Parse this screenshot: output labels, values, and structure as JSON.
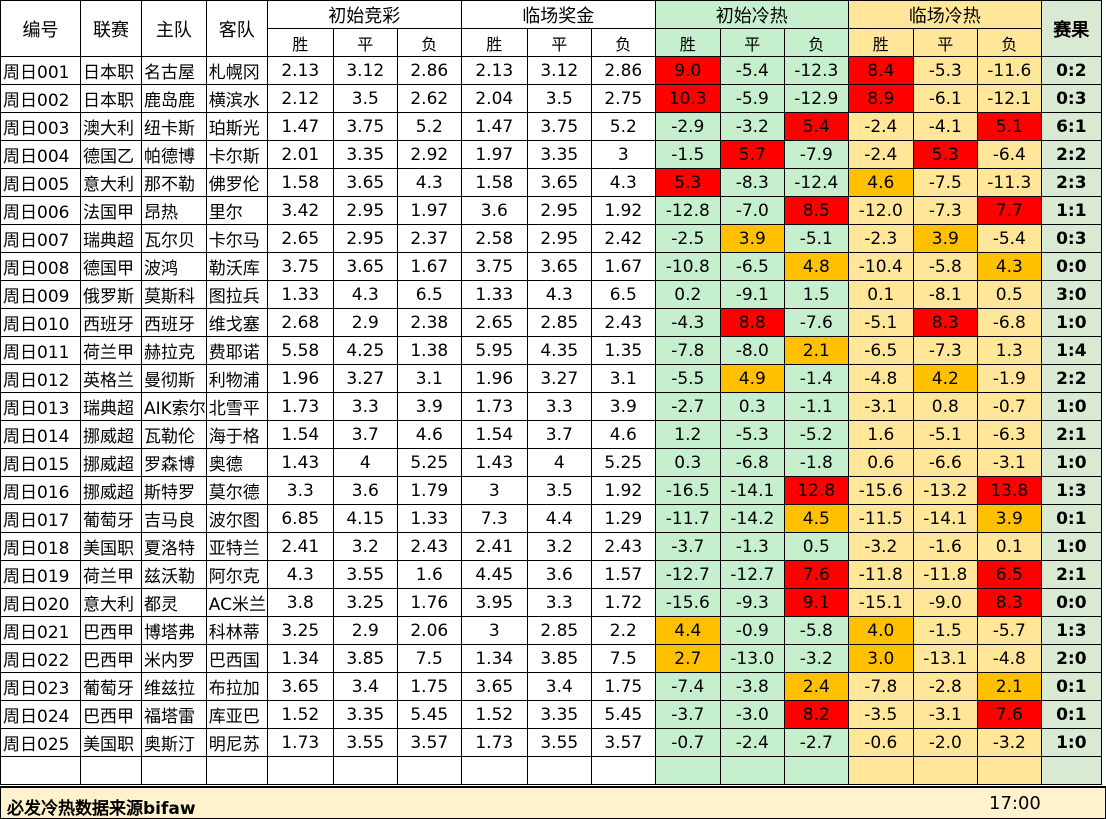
{
  "header": {
    "col_no": "编号",
    "col_league": "联赛",
    "col_home": "主队",
    "col_away": "客队",
    "group_initial_odds": "初始竞彩",
    "group_final_odds": "临场奖金",
    "group_initial_heat": "初始冷热",
    "group_final_heat": "临场冷热",
    "col_result": "赛果",
    "win": "胜",
    "draw": "平",
    "loss": "负"
  },
  "rows": [
    {
      "no": "周日001",
      "league": "日本职",
      "home": "名古屋",
      "away": "札幌冈",
      "io": [
        "2.13",
        "3.12",
        "2.86"
      ],
      "fo": [
        "2.13",
        "3.12",
        "2.86"
      ],
      "ih": [
        "9.0",
        "-5.4",
        "-12.3"
      ],
      "fh": [
        "8.4",
        "-5.3",
        "-11.6"
      ],
      "ihc": [
        "r",
        "",
        ""
      ],
      "fhc": [
        "r",
        "",
        ""
      ],
      "result": "0:2"
    },
    {
      "no": "周日002",
      "league": "日本职",
      "home": "鹿岛鹿",
      "away": "横滨水",
      "io": [
        "2.12",
        "3.5",
        "2.62"
      ],
      "fo": [
        "2.04",
        "3.5",
        "2.75"
      ],
      "ih": [
        "10.3",
        "-5.9",
        "-12.9"
      ],
      "fh": [
        "8.9",
        "-6.1",
        "-12.1"
      ],
      "ihc": [
        "r",
        "",
        ""
      ],
      "fhc": [
        "r",
        "",
        ""
      ],
      "result": "0:3"
    },
    {
      "no": "周日003",
      "league": "澳大利",
      "home": "纽卡斯",
      "away": "珀斯光",
      "io": [
        "1.47",
        "3.75",
        "5.2"
      ],
      "fo": [
        "1.47",
        "3.75",
        "5.2"
      ],
      "ih": [
        "-2.9",
        "-3.2",
        "5.4"
      ],
      "fh": [
        "-2.4",
        "-4.1",
        "5.1"
      ],
      "ihc": [
        "",
        "",
        "r"
      ],
      "fhc": [
        "",
        "",
        "r"
      ],
      "result": "6:1"
    },
    {
      "no": "周日004",
      "league": "德国乙",
      "home": "帕德博",
      "away": "卡尔斯",
      "io": [
        "2.01",
        "3.35",
        "2.92"
      ],
      "fo": [
        "1.97",
        "3.35",
        "3"
      ],
      "ih": [
        "-1.5",
        "5.7",
        "-7.9"
      ],
      "fh": [
        "-2.4",
        "5.3",
        "-6.4"
      ],
      "ihc": [
        "",
        "r",
        ""
      ],
      "fhc": [
        "",
        "r",
        ""
      ],
      "result": "2:2"
    },
    {
      "no": "周日005",
      "league": "意大利",
      "home": "那不勒",
      "away": "佛罗伦",
      "io": [
        "1.58",
        "3.65",
        "4.3"
      ],
      "fo": [
        "1.58",
        "3.65",
        "4.3"
      ],
      "ih": [
        "5.3",
        "-8.3",
        "-12.4"
      ],
      "fh": [
        "4.6",
        "-7.5",
        "-11.3"
      ],
      "ihc": [
        "r",
        "",
        ""
      ],
      "fhc": [
        "o",
        "",
        ""
      ],
      "result": "2:3"
    },
    {
      "no": "周日006",
      "league": "法国甲",
      "home": "昂热",
      "away": "里尔",
      "io": [
        "3.42",
        "2.95",
        "1.97"
      ],
      "fo": [
        "3.6",
        "2.95",
        "1.92"
      ],
      "ih": [
        "-12.8",
        "-7.0",
        "8.5"
      ],
      "fh": [
        "-12.0",
        "-7.3",
        "7.7"
      ],
      "ihc": [
        "",
        "",
        "r"
      ],
      "fhc": [
        "",
        "",
        "r"
      ],
      "result": "1:1"
    },
    {
      "no": "周日007",
      "league": "瑞典超",
      "home": "瓦尔贝",
      "away": "卡尔马",
      "io": [
        "2.65",
        "2.95",
        "2.37"
      ],
      "fo": [
        "2.58",
        "2.95",
        "2.42"
      ],
      "ih": [
        "-2.5",
        "3.9",
        "-5.1"
      ],
      "fh": [
        "-2.3",
        "3.9",
        "-5.4"
      ],
      "ihc": [
        "",
        "o",
        ""
      ],
      "fhc": [
        "",
        "o",
        ""
      ],
      "result": "0:3"
    },
    {
      "no": "周日008",
      "league": "德国甲",
      "home": "波鸿",
      "away": "勒沃库",
      "io": [
        "3.75",
        "3.65",
        "1.67"
      ],
      "fo": [
        "3.75",
        "3.65",
        "1.67"
      ],
      "ih": [
        "-10.8",
        "-6.5",
        "4.8"
      ],
      "fh": [
        "-10.4",
        "-5.8",
        "4.3"
      ],
      "ihc": [
        "",
        "",
        "o"
      ],
      "fhc": [
        "",
        "",
        "o"
      ],
      "result": "0:0"
    },
    {
      "no": "周日009",
      "league": "俄罗斯",
      "home": "莫斯科",
      "away": "图拉兵",
      "io": [
        "1.33",
        "4.3",
        "6.5"
      ],
      "fo": [
        "1.33",
        "4.3",
        "6.5"
      ],
      "ih": [
        "0.2",
        "-9.1",
        "1.5"
      ],
      "fh": [
        "0.1",
        "-8.1",
        "0.5"
      ],
      "ihc": [
        "",
        "",
        ""
      ],
      "fhc": [
        "",
        "",
        ""
      ],
      "result": "3:0"
    },
    {
      "no": "周日010",
      "league": "西班牙",
      "home": "西班牙",
      "away": "维戈塞",
      "io": [
        "2.68",
        "2.9",
        "2.38"
      ],
      "fo": [
        "2.65",
        "2.85",
        "2.43"
      ],
      "ih": [
        "-4.3",
        "8.8",
        "-7.6"
      ],
      "fh": [
        "-5.1",
        "8.3",
        "-6.8"
      ],
      "ihc": [
        "",
        "r",
        ""
      ],
      "fhc": [
        "",
        "r",
        ""
      ],
      "result": "1:0"
    },
    {
      "no": "周日011",
      "league": "荷兰甲",
      "home": "赫拉克",
      "away": "费耶诺",
      "io": [
        "5.58",
        "4.25",
        "1.38"
      ],
      "fo": [
        "5.95",
        "4.35",
        "1.35"
      ],
      "ih": [
        "-7.8",
        "-8.0",
        "2.1"
      ],
      "fh": [
        "-6.5",
        "-7.3",
        "1.3"
      ],
      "ihc": [
        "",
        "",
        "o"
      ],
      "fhc": [
        "",
        "",
        ""
      ],
      "result": "1:4"
    },
    {
      "no": "周日012",
      "league": "英格兰",
      "home": "曼彻斯",
      "away": "利物浦",
      "io": [
        "1.96",
        "3.27",
        "3.1"
      ],
      "fo": [
        "1.96",
        "3.27",
        "3.1"
      ],
      "ih": [
        "-5.5",
        "4.9",
        "-1.4"
      ],
      "fh": [
        "-4.8",
        "4.2",
        "-1.9"
      ],
      "ihc": [
        "",
        "o",
        ""
      ],
      "fhc": [
        "",
        "o",
        ""
      ],
      "result": "2:2"
    },
    {
      "no": "周日013",
      "league": "瑞典超",
      "home": "AIK索尔",
      "away": "北雪平",
      "io": [
        "1.73",
        "3.3",
        "3.9"
      ],
      "fo": [
        "1.73",
        "3.3",
        "3.9"
      ],
      "ih": [
        "-2.7",
        "0.3",
        "-1.1"
      ],
      "fh": [
        "-3.1",
        "0.8",
        "-0.7"
      ],
      "ihc": [
        "",
        "",
        ""
      ],
      "fhc": [
        "",
        "",
        ""
      ],
      "result": "1:0"
    },
    {
      "no": "周日014",
      "league": "挪威超",
      "home": "瓦勒伦",
      "away": "海于格",
      "io": [
        "1.54",
        "3.7",
        "4.6"
      ],
      "fo": [
        "1.54",
        "3.7",
        "4.6"
      ],
      "ih": [
        "1.2",
        "-5.3",
        "-5.2"
      ],
      "fh": [
        "1.6",
        "-5.1",
        "-6.3"
      ],
      "ihc": [
        "",
        "",
        ""
      ],
      "fhc": [
        "",
        "",
        ""
      ],
      "result": "2:1"
    },
    {
      "no": "周日015",
      "league": "挪威超",
      "home": "罗森博",
      "away": "奥德",
      "io": [
        "1.43",
        "4",
        "5.25"
      ],
      "fo": [
        "1.43",
        "4",
        "5.25"
      ],
      "ih": [
        "0.3",
        "-6.8",
        "-1.8"
      ],
      "fh": [
        "0.6",
        "-6.6",
        "-3.1"
      ],
      "ihc": [
        "",
        "",
        ""
      ],
      "fhc": [
        "",
        "",
        ""
      ],
      "result": "1:0"
    },
    {
      "no": "周日016",
      "league": "挪威超",
      "home": "斯特罗",
      "away": "莫尔德",
      "io": [
        "3.3",
        "3.6",
        "1.79"
      ],
      "fo": [
        "3",
        "3.5",
        "1.92"
      ],
      "ih": [
        "-16.5",
        "-14.1",
        "12.8"
      ],
      "fh": [
        "-15.6",
        "-13.2",
        "13.8"
      ],
      "ihc": [
        "",
        "",
        "r"
      ],
      "fhc": [
        "",
        "",
        "r"
      ],
      "result": "1:3"
    },
    {
      "no": "周日017",
      "league": "葡萄牙",
      "home": "吉马良",
      "away": "波尔图",
      "io": [
        "6.85",
        "4.15",
        "1.33"
      ],
      "fo": [
        "7.3",
        "4.4",
        "1.29"
      ],
      "ih": [
        "-11.7",
        "-14.2",
        "4.5"
      ],
      "fh": [
        "-11.5",
        "-14.1",
        "3.9"
      ],
      "ihc": [
        "",
        "",
        "o"
      ],
      "fhc": [
        "",
        "",
        "o"
      ],
      "result": "0:1"
    },
    {
      "no": "周日018",
      "league": "美国职",
      "home": "夏洛特",
      "away": "亚特兰",
      "io": [
        "2.41",
        "3.2",
        "2.43"
      ],
      "fo": [
        "2.41",
        "3.2",
        "2.43"
      ],
      "ih": [
        "-3.7",
        "-1.3",
        "0.5"
      ],
      "fh": [
        "-3.2",
        "-1.6",
        "0.1"
      ],
      "ihc": [
        "",
        "",
        ""
      ],
      "fhc": [
        "",
        "",
        ""
      ],
      "result": "1:0"
    },
    {
      "no": "周日019",
      "league": "荷兰甲",
      "home": "兹沃勒",
      "away": "阿尔克",
      "io": [
        "4.3",
        "3.55",
        "1.6"
      ],
      "fo": [
        "4.45",
        "3.6",
        "1.57"
      ],
      "ih": [
        "-12.7",
        "-12.7",
        "7.6"
      ],
      "fh": [
        "-11.8",
        "-11.8",
        "6.5"
      ],
      "ihc": [
        "",
        "",
        "r"
      ],
      "fhc": [
        "",
        "",
        "r"
      ],
      "result": "2:1"
    },
    {
      "no": "周日020",
      "league": "意大利",
      "home": "都灵",
      "away": "AC米兰",
      "io": [
        "3.8",
        "3.25",
        "1.76"
      ],
      "fo": [
        "3.95",
        "3.3",
        "1.72"
      ],
      "ih": [
        "-15.6",
        "-9.3",
        "9.1"
      ],
      "fh": [
        "-15.1",
        "-9.0",
        "8.3"
      ],
      "ihc": [
        "",
        "",
        "r"
      ],
      "fhc": [
        "",
        "",
        "r"
      ],
      "result": "0:0"
    },
    {
      "no": "周日021",
      "league": "巴西甲",
      "home": "博塔弗",
      "away": "科林蒂",
      "io": [
        "3.25",
        "2.9",
        "2.06"
      ],
      "fo": [
        "3",
        "2.85",
        "2.2"
      ],
      "ih": [
        "4.4",
        "-0.9",
        "-5.8"
      ],
      "fh": [
        "4.0",
        "-1.5",
        "-5.7"
      ],
      "ihc": [
        "o",
        "",
        ""
      ],
      "fhc": [
        "o",
        "",
        ""
      ],
      "result": "1:3"
    },
    {
      "no": "周日022",
      "league": "巴西甲",
      "home": "米内罗",
      "away": "巴西国",
      "io": [
        "1.34",
        "3.85",
        "7.5"
      ],
      "fo": [
        "1.34",
        "3.85",
        "7.5"
      ],
      "ih": [
        "2.7",
        "-13.0",
        "-3.2"
      ],
      "fh": [
        "3.0",
        "-13.1",
        "-4.8"
      ],
      "ihc": [
        "o",
        "",
        ""
      ],
      "fhc": [
        "o",
        "",
        ""
      ],
      "result": "2:0"
    },
    {
      "no": "周日023",
      "league": "葡萄牙",
      "home": "维兹拉",
      "away": "布拉加",
      "io": [
        "3.65",
        "3.4",
        "1.75"
      ],
      "fo": [
        "3.65",
        "3.4",
        "1.75"
      ],
      "ih": [
        "-7.4",
        "-3.8",
        "2.4"
      ],
      "fh": [
        "-7.8",
        "-2.8",
        "2.1"
      ],
      "ihc": [
        "",
        "",
        "o"
      ],
      "fhc": [
        "",
        "",
        "o"
      ],
      "result": "0:1"
    },
    {
      "no": "周日024",
      "league": "巴西甲",
      "home": "福塔雷",
      "away": "库亚巴",
      "io": [
        "1.52",
        "3.35",
        "5.45"
      ],
      "fo": [
        "1.52",
        "3.35",
        "5.45"
      ],
      "ih": [
        "-3.7",
        "-3.0",
        "8.2"
      ],
      "fh": [
        "-3.5",
        "-3.1",
        "7.6"
      ],
      "ihc": [
        "",
        "",
        "r"
      ],
      "fhc": [
        "",
        "",
        "r"
      ],
      "result": "0:1"
    },
    {
      "no": "周日025",
      "league": "美国职",
      "home": "奥斯汀",
      "away": "明尼苏",
      "io": [
        "1.73",
        "3.55",
        "3.57"
      ],
      "fo": [
        "1.73",
        "3.55",
        "3.57"
      ],
      "ih": [
        "-0.7",
        "-2.4",
        "-2.7"
      ],
      "fh": [
        "-0.6",
        "-2.0",
        "-3.2"
      ],
      "ihc": [
        "",
        "",
        ""
      ],
      "fhc": [
        "",
        "",
        ""
      ],
      "result": "1:0"
    }
  ],
  "footer": {
    "source": "必发冷热数据来源bifaw",
    "time": "17:00"
  },
  "colors": {
    "heat_initial_bg": "#c6efce",
    "heat_final_bg": "#ffe699",
    "hot_red": "#ff0000",
    "warm_orange": "#ffc000",
    "result_bg": "#d9ead3",
    "footer_bg": "#fff2cc"
  }
}
